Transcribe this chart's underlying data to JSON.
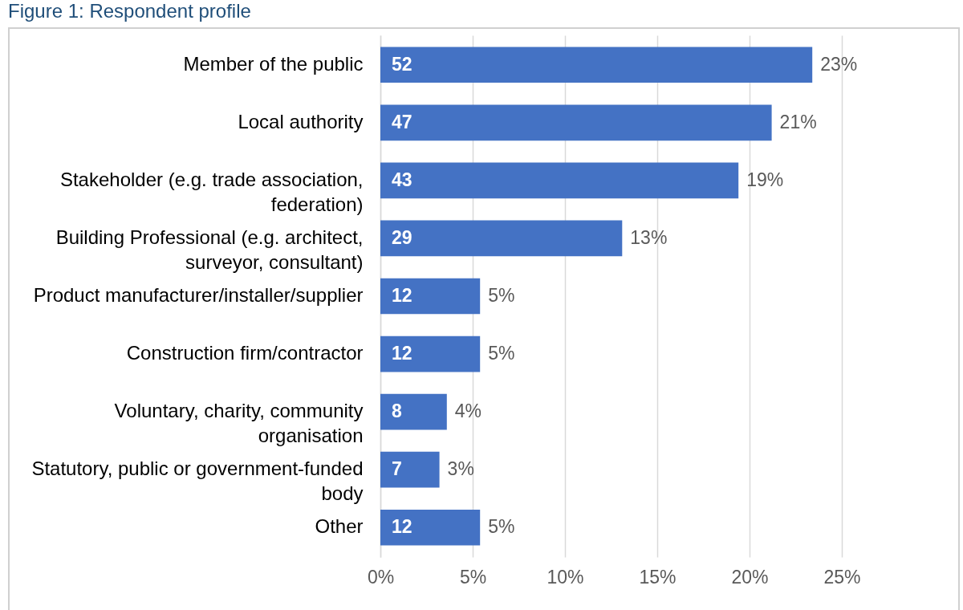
{
  "chart_data": {
    "type": "bar",
    "orientation": "horizontal",
    "title": "Figure 1: Respondent profile",
    "categories": [
      "Member of the public",
      "Local authority",
      "Stakeholder (e.g. trade association, federation)",
      "Building Professional (e.g. architect, surveyor, consultant)",
      "Product manufacturer/installer/supplier",
      "Construction firm/contractor",
      "Voluntary, charity, community organisation",
      "Statutory, public or government-funded body",
      "Other"
    ],
    "values": [
      23.4,
      21.2,
      19.4,
      13.1,
      5.4,
      5.4,
      3.6,
      3.2,
      5.4
    ],
    "value_labels": [
      "23%",
      "21%",
      "19%",
      "13%",
      "5%",
      "5%",
      "4%",
      "3%",
      "5%"
    ],
    "color": "#4472c4",
    "xlim": [
      0,
      25
    ],
    "xticks": [
      {
        "value": 0,
        "label": "0%"
      },
      {
        "value": 5,
        "label": "5%"
      },
      {
        "value": 10,
        "label": "10%"
      },
      {
        "value": 15,
        "label": "15%"
      },
      {
        "value": 20,
        "label": "20%"
      },
      {
        "value": 25,
        "label": "25%"
      }
    ],
    "annotations": [
      "52",
      "47",
      "43",
      "29",
      "12",
      "12",
      "8",
      "7",
      "12"
    ],
    "grid": "x"
  }
}
